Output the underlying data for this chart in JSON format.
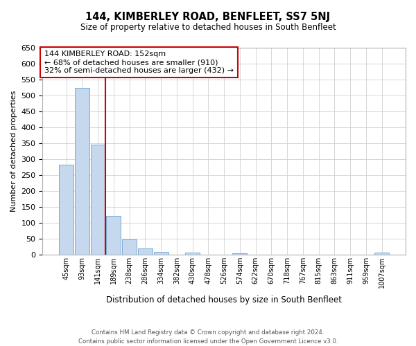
{
  "title": "144, KIMBERLEY ROAD, BENFLEET, SS7 5NJ",
  "subtitle": "Size of property relative to detached houses in South Benfleet",
  "xlabel": "Distribution of detached houses by size in South Benfleet",
  "ylabel": "Number of detached properties",
  "bar_labels": [
    "45sqm",
    "93sqm",
    "141sqm",
    "189sqm",
    "238sqm",
    "286sqm",
    "334sqm",
    "382sqm",
    "430sqm",
    "478sqm",
    "526sqm",
    "574sqm",
    "622sqm",
    "670sqm",
    "718sqm",
    "767sqm",
    "815sqm",
    "863sqm",
    "911sqm",
    "959sqm",
    "1007sqm"
  ],
  "bar_values": [
    283,
    524,
    345,
    121,
    48,
    19,
    8,
    0,
    5,
    0,
    0,
    3,
    0,
    0,
    0,
    0,
    0,
    0,
    0,
    0,
    5
  ],
  "bar_color": "#c5d8ee",
  "bar_edgecolor": "#7aadd4",
  "annotation_title": "144 KIMBERLEY ROAD: 152sqm",
  "annotation_line1": "← 68% of detached houses are smaller (910)",
  "annotation_line2": "32% of semi-detached houses are larger (432) →",
  "vline_color": "#cc0000",
  "ylim": [
    0,
    650
  ],
  "yticks": [
    0,
    50,
    100,
    150,
    200,
    250,
    300,
    350,
    400,
    450,
    500,
    550,
    600,
    650
  ],
  "footnote1": "Contains HM Land Registry data © Crown copyright and database right 2024.",
  "footnote2": "Contains public sector information licensed under the Open Government Licence v3.0.",
  "grid_color": "#d0d0d0"
}
